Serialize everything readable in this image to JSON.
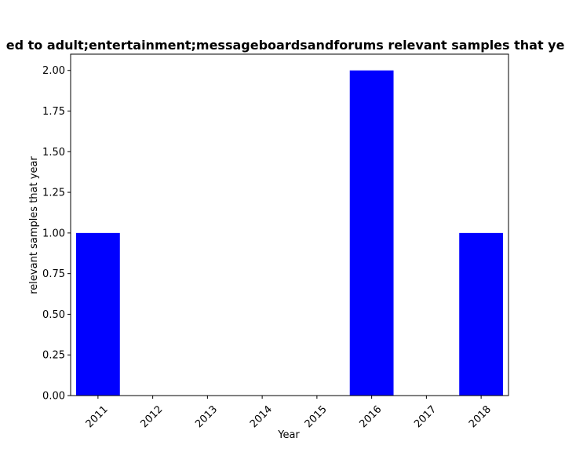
{
  "chart_data": {
    "type": "bar",
    "title": "ed to adult;entertainment;messageboardsandforums relevant samples that yea",
    "xlabel": "Year",
    "ylabel": "relevant samples that year",
    "categories": [
      "2011",
      "2012",
      "2013",
      "2014",
      "2015",
      "2016",
      "2017",
      "2018"
    ],
    "values": [
      1,
      0,
      0,
      0,
      0,
      2,
      0,
      1
    ],
    "ylim": [
      0,
      2.1
    ],
    "yticks": [
      "0.00",
      "0.25",
      "0.50",
      "0.75",
      "1.00",
      "1.25",
      "1.50",
      "1.75",
      "2.00"
    ],
    "bar_color": "#0000ff",
    "grid": false,
    "legend": "none"
  }
}
